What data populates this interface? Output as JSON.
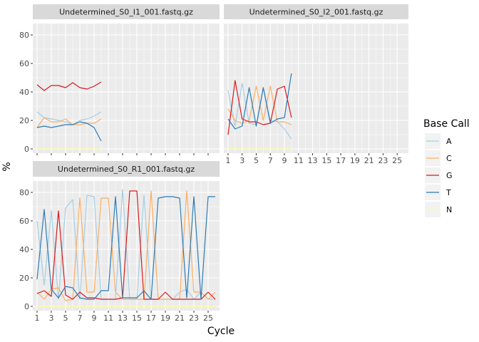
{
  "chart_data": {
    "type": "line",
    "xlabel": "Cycle",
    "ylabel": "%",
    "ylim": [
      -3,
      88
    ],
    "yticks": [
      0,
      20,
      40,
      60,
      80
    ],
    "grid": true,
    "legend": {
      "title": "Base Call",
      "position": "right",
      "entries": [
        {
          "name": "A",
          "color": "#a6cee3"
        },
        {
          "name": "C",
          "color": "#fdae61"
        },
        {
          "name": "G",
          "color": "#d7191c"
        },
        {
          "name": "T",
          "color": "#2c7bb6"
        },
        {
          "name": "N",
          "color": "#ffff99"
        }
      ]
    },
    "panels": [
      {
        "title": "Undetermined_S0_I1_001.fastq.gz",
        "xlim": [
          0.4,
          26.6
        ],
        "show_x_ticks": false,
        "show_y_ticks": true,
        "series": [
          {
            "name": "A",
            "x": [
              1,
              2,
              3,
              4,
              5,
              6,
              7,
              8,
              9,
              10
            ],
            "values": [
              26,
              22,
              21,
              20,
              19,
              17,
              20,
              21,
              23,
              26
            ]
          },
          {
            "name": "C",
            "x": [
              1,
              2,
              3,
              4,
              5,
              6,
              7,
              8,
              9,
              10
            ],
            "values": [
              15,
              22,
              19,
              19,
              21,
              17,
              17,
              18,
              18,
              21
            ]
          },
          {
            "name": "G",
            "x": [
              1,
              2,
              3,
              4,
              5,
              6,
              7,
              8,
              9,
              10
            ],
            "values": [
              45,
              41,
              44.5,
              44.5,
              43,
              46.5,
              43,
              42,
              44,
              47
            ]
          },
          {
            "name": "T",
            "x": [
              1,
              2,
              3,
              4,
              5,
              6,
              7,
              8,
              9,
              10
            ],
            "values": [
              15,
              16,
              15,
              16,
              17,
              17,
              19,
              18,
              15,
              5.5
            ]
          },
          {
            "name": "N",
            "x": [
              1,
              2,
              3,
              4,
              5,
              6,
              7,
              8,
              9,
              10
            ],
            "values": [
              0,
              0,
              0,
              0,
              0,
              0,
              0,
              0,
              0,
              0
            ]
          }
        ]
      },
      {
        "title": "Undetermined_S0_I2_001.fastq.gz",
        "xlim": [
          0.4,
          26.6
        ],
        "show_x_ticks": true,
        "show_y_ticks": false,
        "series": [
          {
            "name": "A",
            "x": [
              1,
              2,
              3,
              4,
              5,
              6,
              7,
              8,
              9,
              10
            ],
            "values": [
              41,
              16,
              46,
              18,
              17,
              43,
              20,
              19,
              14,
              7
            ]
          },
          {
            "name": "C",
            "x": [
              1,
              2,
              3,
              4,
              5,
              6,
              7,
              8,
              9,
              10
            ],
            "values": [
              28,
              20,
              18,
              20,
              44,
              20,
              44,
              19,
              19,
              17
            ]
          },
          {
            "name": "G",
            "x": [
              1,
              2,
              3,
              4,
              5,
              6,
              7,
              8,
              9,
              10
            ],
            "values": [
              10,
              48,
              21,
              19,
              19,
              17,
              18,
              42,
              44,
              22
            ]
          },
          {
            "name": "T",
            "x": [
              1,
              2,
              3,
              4,
              5,
              6,
              7,
              8,
              9,
              10
            ],
            "values": [
              21,
              14,
              16,
              43,
              16,
              43,
              18,
              21,
              22,
              53
            ]
          },
          {
            "name": "N",
            "x": [
              1,
              2,
              3,
              4,
              5,
              6,
              7,
              8,
              9,
              10
            ],
            "values": [
              0,
              0,
              0,
              0,
              0,
              0,
              0,
              0,
              0,
              0
            ]
          }
        ]
      },
      {
        "title": "Undetermined_S0_R1_001.fastq.gz",
        "xlim": [
          0.4,
          26.6
        ],
        "show_x_ticks": true,
        "show_y_ticks": true,
        "series": [
          {
            "name": "A",
            "x": [
              1,
              2,
              3,
              4,
              5,
              6,
              7,
              8,
              9,
              10,
              11,
              12,
              13,
              14,
              15,
              16,
              17,
              18,
              19,
              20,
              21,
              22,
              23,
              24,
              25,
              26
            ],
            "values": [
              60,
              15,
              67,
              5,
              69,
              75,
              5,
              78,
              77,
              5,
              5,
              5,
              82,
              5,
              5,
              78,
              5,
              5,
              5,
              5,
              10,
              12,
              5,
              10,
              5,
              5
            ]
          },
          {
            "name": "C",
            "x": [
              1,
              2,
              3,
              4,
              5,
              6,
              7,
              8,
              9,
              10,
              11,
              12,
              13,
              14,
              15,
              16,
              17,
              18,
              19,
              20,
              21,
              22,
              23,
              24,
              25,
              26
            ],
            "values": [
              10,
              5,
              12,
              13,
              4,
              5,
              76,
              10,
              10,
              76,
              76,
              10,
              5,
              5,
              5,
              5,
              81,
              5,
              5,
              5,
              5,
              81,
              10,
              10,
              5,
              10
            ]
          },
          {
            "name": "G",
            "x": [
              1,
              2,
              3,
              4,
              5,
              6,
              7,
              8,
              9,
              10,
              11,
              12,
              13,
              14,
              15,
              16,
              17,
              18,
              19,
              20,
              21,
              22,
              23,
              24,
              25,
              26
            ],
            "values": [
              9,
              11,
              7,
              67,
              8,
              5,
              10,
              6,
              6,
              5,
              5,
              5,
              6,
              81,
              81,
              5,
              5,
              5,
              10,
              5,
              5,
              5,
              5,
              5,
              10,
              5
            ]
          },
          {
            "name": "T",
            "x": [
              1,
              2,
              3,
              4,
              5,
              6,
              7,
              8,
              9,
              10,
              11,
              12,
              13,
              14,
              15,
              16,
              17,
              18,
              19,
              20,
              21,
              22,
              23,
              24,
              25,
              26
            ],
            "values": [
              19,
              68,
              12,
              6,
              14,
              13,
              6,
              5,
              5,
              11,
              11,
              77,
              6,
              6,
              6,
              11,
              5,
              76,
              77,
              77,
              76,
              6,
              77,
              5,
              77,
              77
            ]
          },
          {
            "name": "N",
            "x": [
              1,
              2,
              3,
              4,
              5,
              6,
              7,
              8,
              9,
              10,
              11,
              12,
              13,
              14,
              15,
              16,
              17,
              18,
              19,
              20,
              21,
              22,
              23,
              24,
              25,
              26
            ],
            "values": [
              0,
              0,
              0,
              0,
              0,
              0,
              0,
              0,
              0,
              0,
              0,
              0,
              0,
              0,
              0,
              0,
              0,
              0,
              0,
              0,
              0,
              0,
              0,
              0,
              0,
              0
            ]
          }
        ]
      }
    ],
    "xticks": [
      1,
      3,
      5,
      7,
      9,
      11,
      13,
      15,
      17,
      19,
      21,
      23,
      25
    ]
  }
}
